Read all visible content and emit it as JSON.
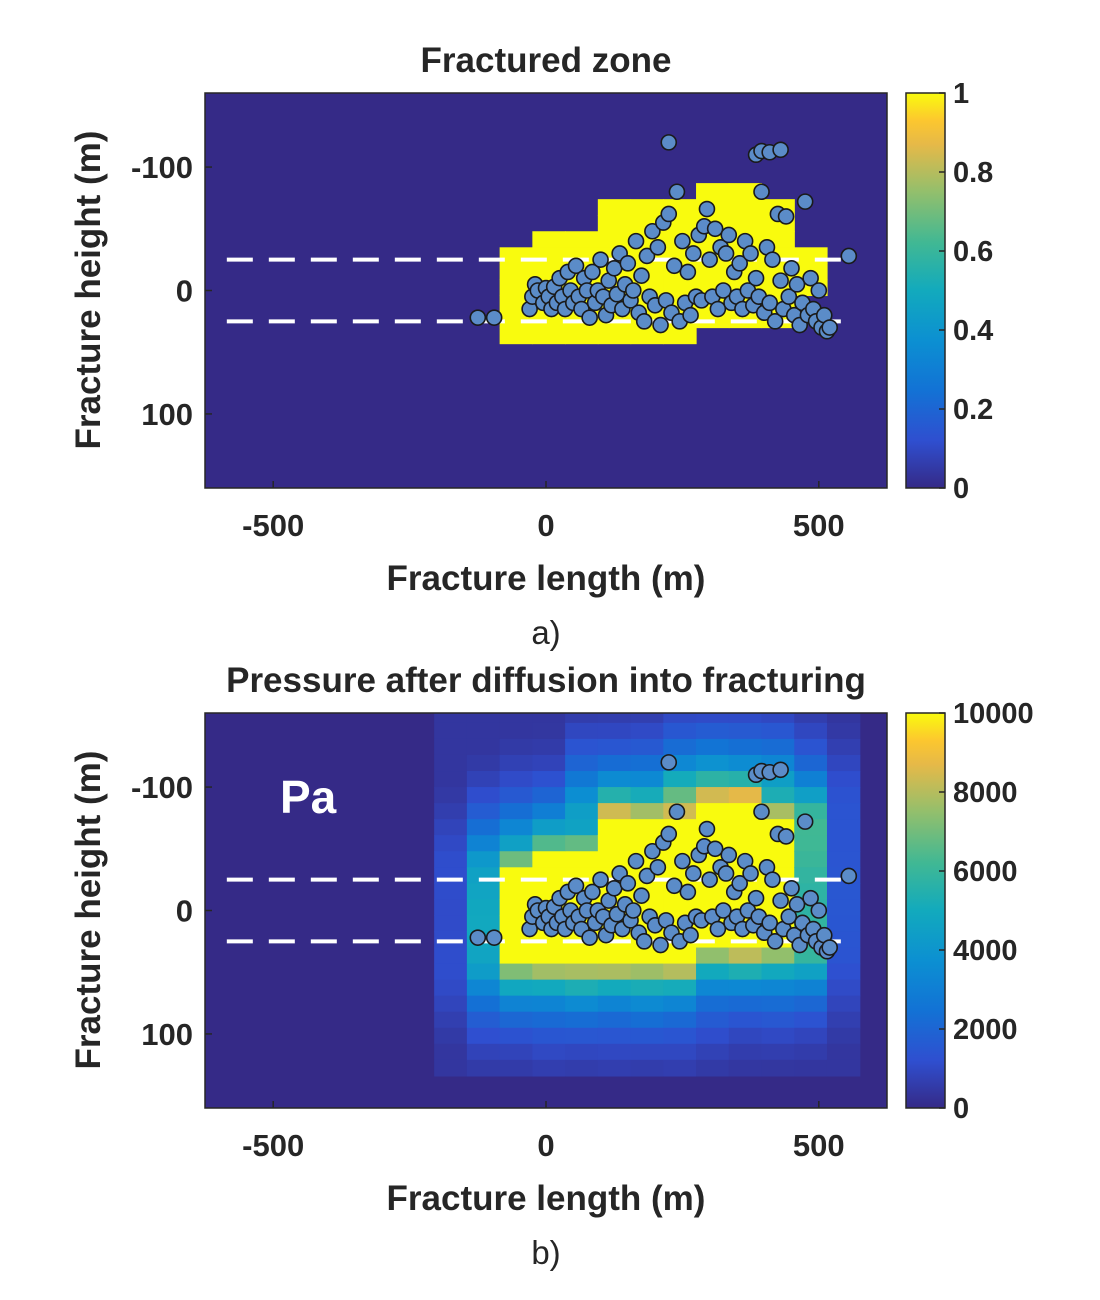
{
  "chart_data": [
    {
      "type": "heatmap",
      "title": "Fractured zone",
      "xlabel": "Fracture length (m)",
      "ylabel": "Fracture height (m)",
      "panel_label": "a)",
      "xlim": [
        -625,
        625
      ],
      "ylim": [
        -160,
        160
      ],
      "y_reversed": true,
      "xticks": [
        -500,
        0,
        500
      ],
      "xtick_labels": [
        "-500",
        "0",
        "500"
      ],
      "yticks": [
        -100,
        0,
        100
      ],
      "ytick_labels": [
        "-100",
        "0",
        "100"
      ],
      "colorbar": {
        "range": [
          0,
          1
        ],
        "ticks": [
          0,
          0.2,
          0.4,
          0.6,
          0.8,
          1
        ],
        "tick_labels": [
          "0",
          "0.2",
          "0.4",
          "0.6",
          "0.8",
          "1"
        ],
        "colormap": "parula"
      },
      "grid_cell": {
        "dx": 60,
        "dy": 13
      },
      "regions": [
        {
          "x": [
            -85,
            -25
          ],
          "y": [
            -30,
            40
          ],
          "value": 1
        },
        {
          "x": [
            -25,
            95
          ],
          "y": [
            -43,
            43
          ],
          "value": 1
        },
        {
          "x": [
            95,
            260
          ],
          "y": [
            -75,
            43
          ],
          "value": 1
        },
        {
          "x": [
            260,
            400
          ],
          "y": [
            -90,
            30
          ],
          "value": 1
        },
        {
          "x": [
            400,
            465
          ],
          "y": [
            -75,
            30
          ],
          "value": 1
        },
        {
          "x": [
            465,
            510
          ],
          "y": [
            -33,
            10
          ],
          "value": 1
        }
      ],
      "dashed_lines": [
        -25,
        25
      ],
      "grid": false
    },
    {
      "type": "heatmap",
      "title": "Pressure after diffusion into fracturing",
      "xlabel": "Fracture length (m)",
      "ylabel": "Fracture height (m)",
      "panel_label": "b)",
      "annotation": "Pa",
      "xlim": [
        -625,
        625
      ],
      "ylim": [
        -160,
        160
      ],
      "y_reversed": true,
      "xticks": [
        -500,
        0,
        500
      ],
      "xtick_labels": [
        "-500",
        "0",
        "500"
      ],
      "yticks": [
        -100,
        0,
        100
      ],
      "ytick_labels": [
        "-100",
        "0",
        "100"
      ],
      "colorbar": {
        "range": [
          0,
          10000
        ],
        "ticks": [
          0,
          2000,
          4000,
          6000,
          8000,
          10000
        ],
        "tick_labels": [
          "0",
          "2000",
          "4000",
          "6000",
          "8000",
          "10000"
        ],
        "colormap": "parula"
      },
      "grid_cell": {
        "dx": 60,
        "dy": 13
      },
      "core_regions": [
        {
          "x": [
            -85,
            -25
          ],
          "y": [
            -30,
            40
          ],
          "value": 10000
        },
        {
          "x": [
            -25,
            95
          ],
          "y": [
            -43,
            43
          ],
          "value": 10000
        },
        {
          "x": [
            95,
            260
          ],
          "y": [
            -75,
            43
          ],
          "value": 10000
        },
        {
          "x": [
            260,
            400
          ],
          "y": [
            -90,
            30
          ],
          "value": 10000
        },
        {
          "x": [
            400,
            465
          ],
          "y": [
            -75,
            30
          ],
          "value": 10000
        }
      ],
      "diffusion_extent": {
        "x": [
          -205,
          570
        ],
        "y": [
          -165,
          140
        ]
      },
      "dashed_lines": [
        -25,
        25
      ],
      "grid": false
    }
  ],
  "events": {
    "points": [
      [
        -125,
        22
      ],
      [
        -95,
        22
      ],
      [
        -30,
        15
      ],
      [
        -25,
        5
      ],
      [
        -20,
        -5
      ],
      [
        -15,
        0
      ],
      [
        -5,
        10
      ],
      [
        0,
        -2
      ],
      [
        5,
        5
      ],
      [
        10,
        15
      ],
      [
        15,
        -3
      ],
      [
        20,
        10
      ],
      [
        25,
        -10
      ],
      [
        30,
        5
      ],
      [
        35,
        15
      ],
      [
        40,
        -15
      ],
      [
        45,
        0
      ],
      [
        50,
        10
      ],
      [
        55,
        -20
      ],
      [
        60,
        5
      ],
      [
        65,
        15
      ],
      [
        70,
        -10
      ],
      [
        75,
        0
      ],
      [
        80,
        22
      ],
      [
        85,
        -15
      ],
      [
        90,
        10
      ],
      [
        95,
        0
      ],
      [
        100,
        -25
      ],
      [
        105,
        5
      ],
      [
        110,
        20
      ],
      [
        115,
        -8
      ],
      [
        120,
        12
      ],
      [
        125,
        -18
      ],
      [
        130,
        3
      ],
      [
        135,
        -30
      ],
      [
        140,
        15
      ],
      [
        145,
        -5
      ],
      [
        150,
        -22
      ],
      [
        155,
        8
      ],
      [
        160,
        0
      ],
      [
        165,
        -40
      ],
      [
        170,
        18
      ],
      [
        175,
        -12
      ],
      [
        180,
        25
      ],
      [
        185,
        -28
      ],
      [
        190,
        5
      ],
      [
        195,
        -48
      ],
      [
        200,
        12
      ],
      [
        205,
        -35
      ],
      [
        210,
        28
      ],
      [
        215,
        -55
      ],
      [
        220,
        8
      ],
      [
        225,
        -62
      ],
      [
        230,
        18
      ],
      [
        235,
        -20
      ],
      [
        240,
        -80
      ],
      [
        245,
        25
      ],
      [
        250,
        -40
      ],
      [
        255,
        10
      ],
      [
        260,
        -15
      ],
      [
        265,
        20
      ],
      [
        270,
        -30
      ],
      [
        275,
        5
      ],
      [
        280,
        -45
      ],
      [
        285,
        8
      ],
      [
        290,
        -52
      ],
      [
        295,
        -66
      ],
      [
        300,
        -25
      ],
      [
        305,
        5
      ],
      [
        310,
        -50
      ],
      [
        315,
        15
      ],
      [
        320,
        -35
      ],
      [
        325,
        0
      ],
      [
        330,
        -30
      ],
      [
        335,
        -45
      ],
      [
        340,
        10
      ],
      [
        345,
        -15
      ],
      [
        350,
        5
      ],
      [
        355,
        -22
      ],
      [
        360,
        15
      ],
      [
        365,
        -40
      ],
      [
        370,
        0
      ],
      [
        375,
        -30
      ],
      [
        380,
        12
      ],
      [
        385,
        -10
      ],
      [
        390,
        5
      ],
      [
        395,
        -80
      ],
      [
        400,
        18
      ],
      [
        405,
        -35
      ],
      [
        410,
        10
      ],
      [
        415,
        -25
      ],
      [
        420,
        25
      ],
      [
        425,
        -62
      ],
      [
        430,
        -8
      ],
      [
        435,
        15
      ],
      [
        440,
        -60
      ],
      [
        445,
        5
      ],
      [
        450,
        -18
      ],
      [
        455,
        20
      ],
      [
        460,
        -5
      ],
      [
        465,
        28
      ],
      [
        470,
        10
      ],
      [
        475,
        -72
      ],
      [
        480,
        20
      ],
      [
        485,
        -10
      ],
      [
        490,
        15
      ],
      [
        495,
        25
      ],
      [
        500,
        0
      ],
      [
        505,
        30
      ],
      [
        510,
        20
      ],
      [
        515,
        33
      ],
      [
        520,
        30
      ],
      [
        555,
        -28
      ],
      [
        225,
        -120
      ],
      [
        385,
        -110
      ],
      [
        395,
        -113
      ],
      [
        410,
        -112
      ],
      [
        430,
        -114
      ]
    ]
  }
}
